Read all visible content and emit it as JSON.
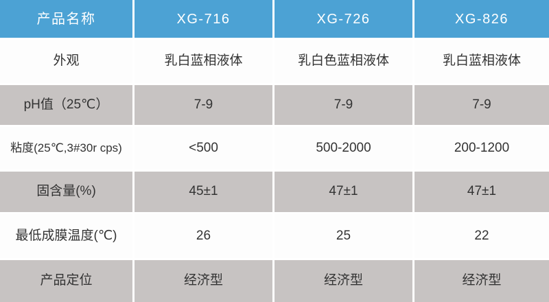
{
  "table": {
    "headers": [
      "产品名称",
      "XG-716",
      "XG-726",
      "XG-826"
    ],
    "rows": [
      {
        "label": "外观",
        "values": [
          "乳白蓝相液体",
          "乳白色蓝相液体",
          "乳白蓝相液体"
        ]
      },
      {
        "label": "pH值（25℃）",
        "values": [
          "7-9",
          "7-9",
          "7-9"
        ]
      },
      {
        "label": "粘度(25℃,3#30r cps)",
        "values": [
          "<500",
          "500-2000",
          "200-1200"
        ]
      },
      {
        "label": "固含量(%)",
        "values": [
          "45±1",
          "47±1",
          "47±1"
        ]
      },
      {
        "label": "最低成膜温度(℃)",
        "values": [
          "26",
          "25",
          "22"
        ]
      },
      {
        "label": "产品定位",
        "values": [
          "经济型",
          "经济型",
          "经济型"
        ]
      }
    ]
  },
  "colors": {
    "header_bg": "#4ca2d4",
    "alt_row_bg": "#c7c3c2",
    "row_bg": "#fdfdfd",
    "text": "#333333",
    "header_text": "#ffffff"
  }
}
